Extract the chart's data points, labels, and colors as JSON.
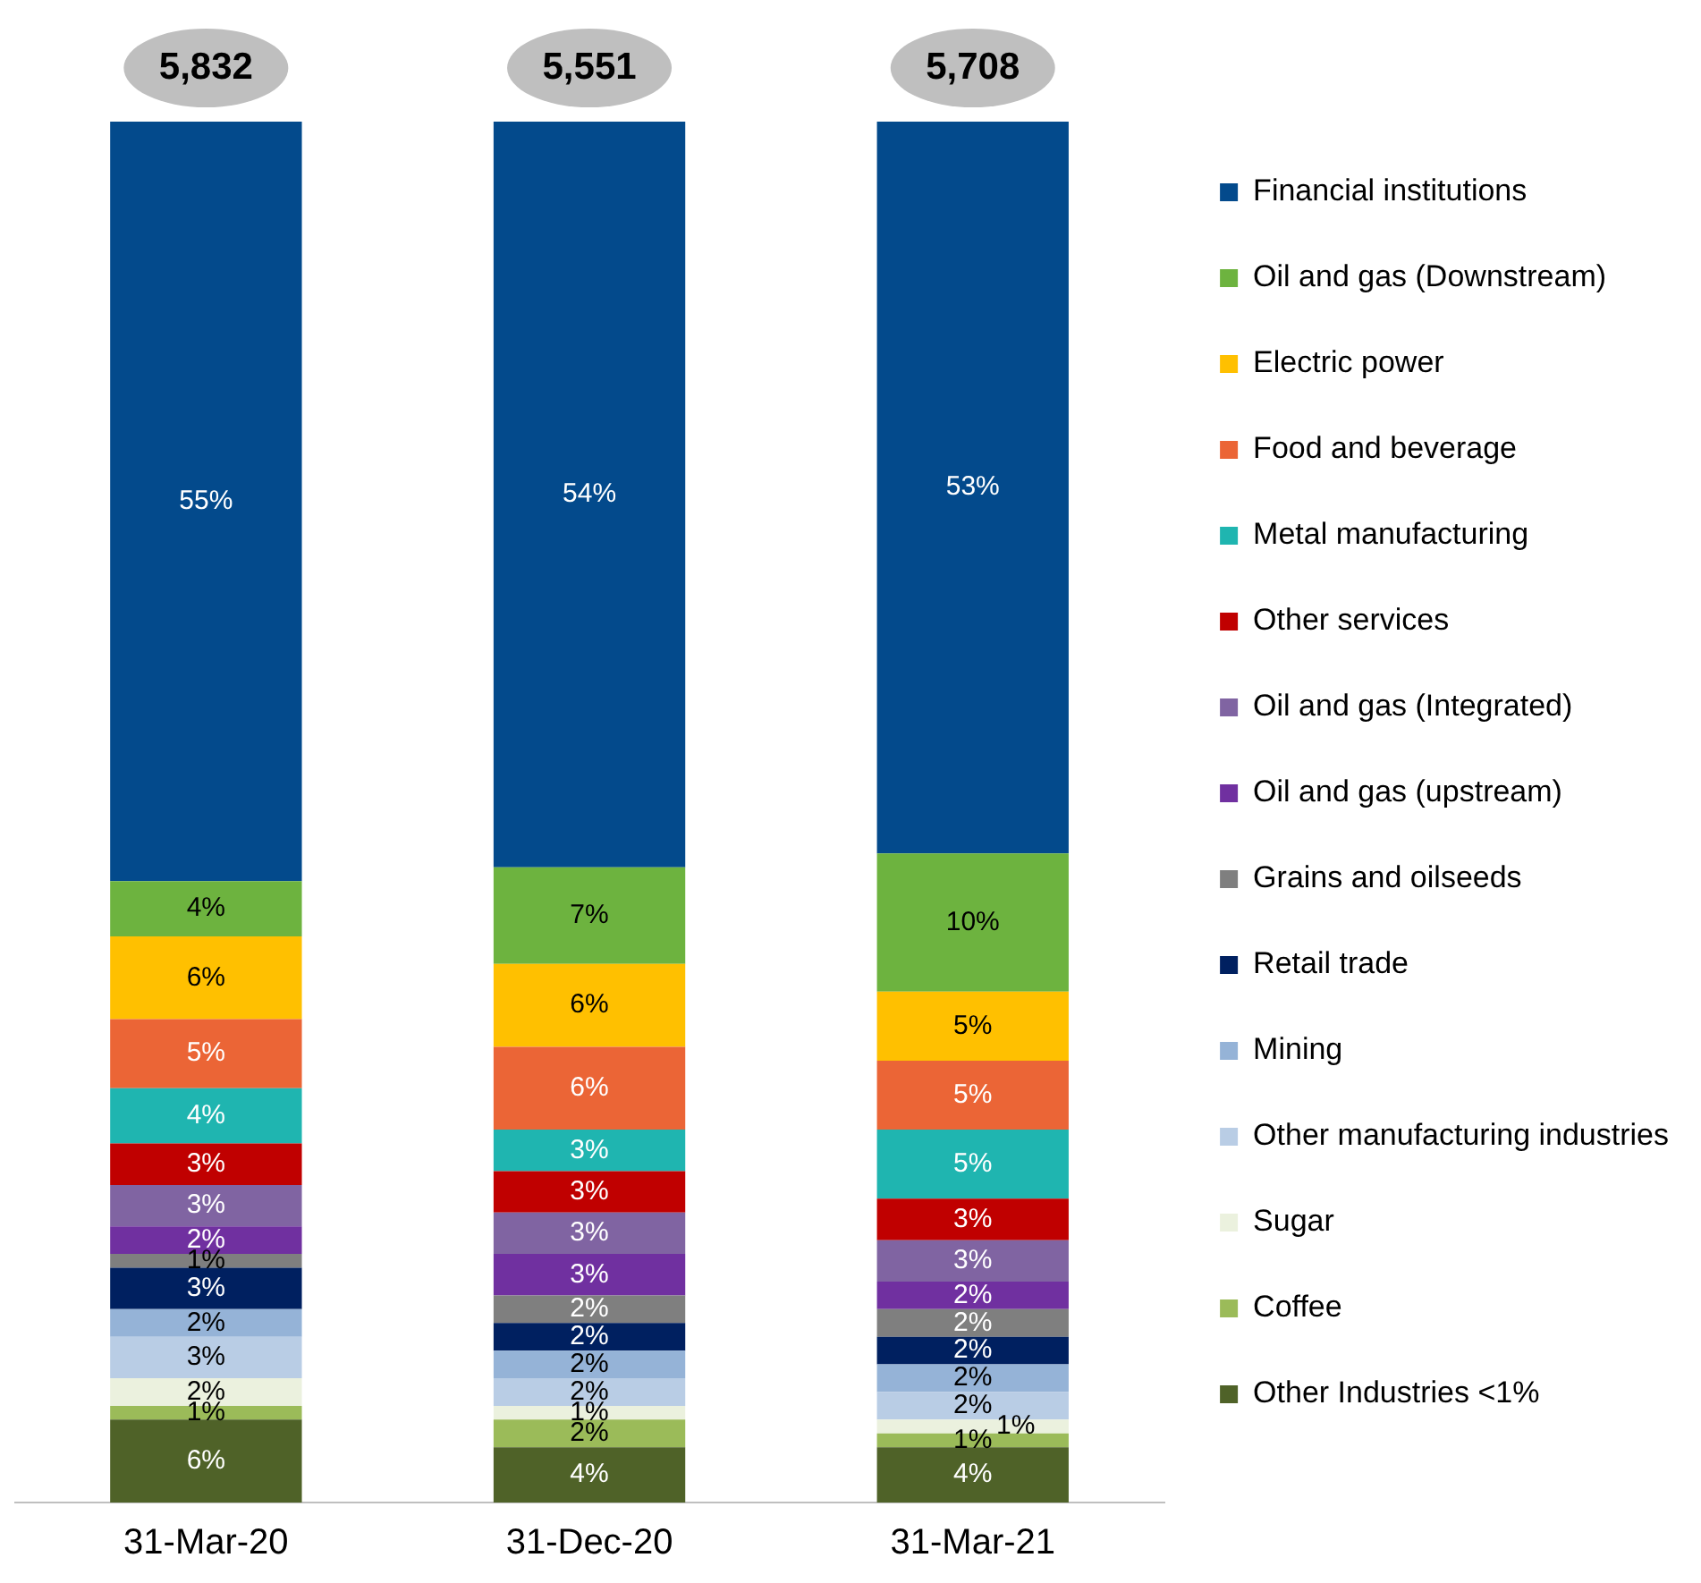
{
  "chart_data": {
    "type": "bar",
    "stacked": true,
    "legend": "right",
    "categories": [
      "31-Mar-20",
      "31-Dec-20",
      "31-Mar-21"
    ],
    "annotations": [
      "5,832",
      "5,551",
      "5,708"
    ],
    "series": [
      {
        "name": "Other Industries <1%",
        "color": "#4f6228",
        "values": [
          6,
          4,
          4
        ],
        "value_labels": [
          "6%",
          "4%",
          "4%"
        ]
      },
      {
        "name": "Coffee",
        "color": "#9bbb59",
        "values": [
          1,
          2,
          1
        ],
        "value_labels": [
          "1%",
          "2%",
          "1%"
        ]
      },
      {
        "name": "Sugar",
        "color": "#ebf1de",
        "values": [
          2,
          1,
          1
        ],
        "value_labels": [
          "2%",
          "1%",
          "1%"
        ]
      },
      {
        "name": "Other manufacturing industries",
        "color": "#b9cde5",
        "values": [
          3,
          2,
          2
        ],
        "value_labels": [
          "3%",
          "2%",
          "2%"
        ]
      },
      {
        "name": "Mining",
        "color": "#95b3d7",
        "values": [
          2,
          2,
          2
        ],
        "value_labels": [
          "2%",
          "2%",
          "2%"
        ]
      },
      {
        "name": "Retail trade",
        "color": "#002060",
        "values": [
          3,
          2,
          2
        ],
        "value_labels": [
          "3%",
          "2%",
          "2%"
        ]
      },
      {
        "name": "Grains and oilseeds",
        "color": "#7f7f7f",
        "values": [
          1,
          2,
          2
        ],
        "value_labels": [
          "1%",
          "2%",
          "2%"
        ]
      },
      {
        "name": "Oil and gas (upstream)",
        "color": "#7030a0",
        "values": [
          2,
          3,
          2
        ],
        "value_labels": [
          "2%",
          "3%",
          "2%"
        ]
      },
      {
        "name": "Oil and gas (Integrated)",
        "color": "#8064a2",
        "values": [
          3,
          3,
          3
        ],
        "value_labels": [
          "3%",
          "3%",
          "3%"
        ]
      },
      {
        "name": "Other services",
        "color": "#c00000",
        "values": [
          3,
          3,
          3
        ],
        "value_labels": [
          "3%",
          "3%",
          "3%"
        ]
      },
      {
        "name": "Metal manufacturing",
        "color": "#1fb5b0",
        "values": [
          4,
          3,
          5
        ],
        "value_labels": [
          "4%",
          "3%",
          "5%"
        ]
      },
      {
        "name": "Food and beverage",
        "color": "#eb6536",
        "values": [
          5,
          6,
          5
        ],
        "value_labels": [
          "5%",
          "6%",
          "5%"
        ]
      },
      {
        "name": "Electric power",
        "color": "#ffc000",
        "values": [
          6,
          6,
          5
        ],
        "value_labels": [
          "6%",
          "6%",
          "5%"
        ]
      },
      {
        "name": "Oil and gas (Downstream)",
        "color": "#6db33f",
        "values": [
          4,
          7,
          10
        ],
        "value_labels": [
          "4%",
          "7%",
          "10%"
        ]
      },
      {
        "name": "Financial institutions",
        "color": "#034a8c",
        "values": [
          55,
          54,
          53
        ],
        "value_labels": [
          "55%",
          "54%",
          "53%"
        ]
      }
    ]
  }
}
